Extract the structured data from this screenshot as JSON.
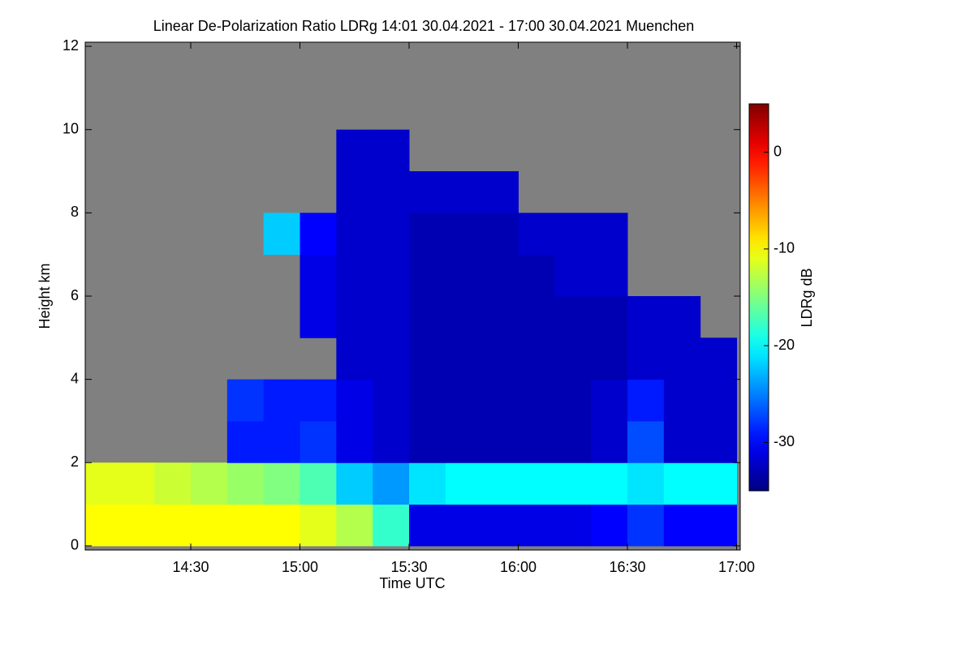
{
  "chart_data": {
    "type": "heatmap",
    "title": "Linear De-Polarization Ratio LDRg   14:01 30.04.2021 - 17:00 30.04.2021 Muenchen",
    "xlabel": "Time UTC",
    "ylabel": "Height km",
    "colorbar_label": "LDRg dB",
    "colormap": "jet",
    "nodata_color": "#808080",
    "xlim": [
      841,
      1021
    ],
    "xticks": [
      {
        "value": 870,
        "label": "14:30"
      },
      {
        "value": 900,
        "label": "15:00"
      },
      {
        "value": 930,
        "label": "15:30"
      },
      {
        "value": 960,
        "label": "16:00"
      },
      {
        "value": 990,
        "label": "16:30"
      },
      {
        "value": 1020,
        "label": "17:00"
      }
    ],
    "ylim": [
      -0.1,
      12.1
    ],
    "yticks": [
      0,
      2,
      4,
      6,
      8,
      10,
      12
    ],
    "clim": [
      -35,
      5
    ],
    "cticks": [
      0,
      -10,
      -20,
      -30
    ],
    "xbins": [
      840,
      850,
      860,
      870,
      880,
      890,
      900,
      910,
      920,
      930,
      940,
      950,
      960,
      970,
      980,
      990,
      1000,
      1010,
      1020
    ],
    "ybins": [
      0,
      1,
      2,
      3,
      4,
      5,
      6,
      7,
      8,
      9,
      10,
      11,
      12
    ],
    "z": [
      [
        -10,
        -10,
        -10,
        -10,
        -10,
        -10,
        -11,
        -13,
        -18,
        -31,
        -31,
        -31,
        -31,
        -31,
        -30,
        -28,
        -30,
        -30
      ],
      [
        -11,
        -11,
        -12,
        -13,
        -14,
        -15,
        -17,
        -22,
        -24,
        -21,
        -20,
        -20,
        -20,
        -20,
        -20,
        -21,
        -20,
        -20
      ],
      [
        null,
        null,
        null,
        null,
        -29,
        -29,
        -28,
        -31,
        -32,
        -33,
        -33,
        -33,
        -33,
        -33,
        -32,
        -27,
        -32,
        -32
      ],
      [
        null,
        null,
        null,
        null,
        -28,
        -29,
        -29,
        -31,
        -32,
        -33,
        -33,
        -33,
        -33,
        -33,
        -32,
        -29,
        -32,
        -32
      ],
      [
        null,
        null,
        null,
        null,
        null,
        null,
        null,
        -32,
        -32,
        -33,
        -33,
        -33,
        -33,
        -33,
        -33,
        -32,
        -32,
        -32
      ],
      [
        null,
        null,
        null,
        null,
        null,
        null,
        -31,
        -32,
        -32,
        -33,
        -33,
        -33,
        -33,
        -33,
        -33,
        -32,
        -32,
        null
      ],
      [
        null,
        null,
        null,
        null,
        null,
        null,
        -31,
        -32,
        -32,
        -33,
        -33,
        -33,
        -33,
        -32,
        -32,
        null,
        null,
        null
      ],
      [
        null,
        null,
        null,
        null,
        null,
        -22,
        -30,
        -32,
        -32,
        -33,
        -33,
        -33,
        -32,
        -32,
        -32,
        null,
        null,
        null
      ],
      [
        null,
        null,
        null,
        null,
        null,
        null,
        null,
        -32,
        -32,
        -32,
        -32,
        -32,
        null,
        null,
        null,
        null,
        null,
        null
      ],
      [
        null,
        null,
        null,
        null,
        null,
        null,
        null,
        -32,
        -32,
        null,
        null,
        null,
        null,
        null,
        null,
        null,
        null,
        null
      ],
      [
        null,
        null,
        null,
        null,
        null,
        null,
        null,
        null,
        null,
        null,
        null,
        null,
        null,
        null,
        null,
        null,
        null,
        null
      ],
      [
        null,
        null,
        null,
        null,
        null,
        null,
        null,
        null,
        null,
        null,
        null,
        null,
        null,
        null,
        null,
        null,
        null,
        null
      ]
    ]
  }
}
